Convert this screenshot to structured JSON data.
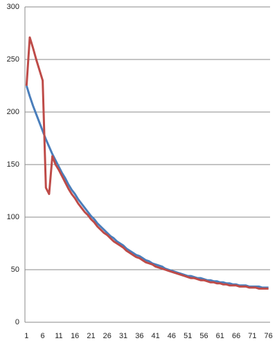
{
  "chart_data": {
    "type": "line",
    "categories": [
      1,
      null,
      null,
      null,
      null,
      6,
      null,
      null,
      null,
      null,
      11,
      null,
      null,
      null,
      null,
      16,
      null,
      null,
      null,
      null,
      21,
      null,
      null,
      null,
      null,
      26,
      null,
      null,
      null,
      null,
      31,
      null,
      null,
      null,
      null,
      36,
      null,
      null,
      null,
      null,
      41,
      null,
      null,
      null,
      null,
      46,
      null,
      null,
      null,
      null,
      51,
      null,
      null,
      null,
      null,
      56,
      null,
      null,
      null,
      null,
      61,
      null,
      null,
      null,
      null,
      66,
      null,
      null,
      null,
      null,
      71,
      null,
      null,
      null,
      null,
      76
    ],
    "series": [
      {
        "color": "#4a7ebb",
        "values": [
          225,
          215,
          206,
          198,
          190,
          182,
          174,
          167,
          160,
          154,
          148,
          142,
          137,
          131,
          126,
          122,
          117,
          113,
          109,
          105,
          101,
          98,
          94,
          91,
          88,
          85,
          82,
          80,
          77,
          75,
          73,
          70,
          68,
          66,
          64,
          63,
          61,
          59,
          58,
          56,
          55,
          54,
          53,
          51,
          50,
          49,
          48,
          47,
          46,
          45,
          44,
          44,
          43,
          42,
          42,
          41,
          40,
          40,
          39,
          39,
          38,
          38,
          37,
          37,
          36,
          36,
          35,
          35,
          35,
          34,
          34,
          34,
          34,
          33,
          33,
          33
        ]
      },
      {
        "color": "#be4b48",
        "values": [
          225,
          271,
          261,
          250,
          240,
          230,
          128,
          122,
          158,
          150,
          145,
          139,
          133,
          127,
          122,
          118,
          113,
          109,
          105,
          102,
          98,
          95,
          91,
          88,
          85,
          83,
          80,
          77,
          75,
          73,
          71,
          68,
          66,
          64,
          62,
          61,
          59,
          57,
          56,
          55,
          53,
          52,
          51,
          50,
          49,
          48,
          47,
          46,
          45,
          44,
          43,
          42,
          42,
          41,
          40,
          40,
          39,
          38,
          38,
          37,
          37,
          36,
          36,
          35,
          35,
          35,
          34,
          34,
          34,
          33,
          33,
          33,
          32,
          32,
          32,
          32
        ]
      }
    ],
    "ylim": [
      0,
      300
    ],
    "yticks": [
      0,
      50,
      100,
      150,
      200,
      250,
      300
    ],
    "grid": true
  }
}
